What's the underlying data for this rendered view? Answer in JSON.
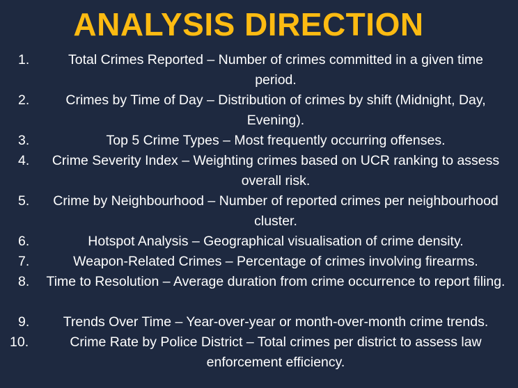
{
  "slide": {
    "title": "ANALYSIS DIRECTION",
    "items": [
      {
        "num": "1.",
        "text": "Total Crimes Reported – Number of crimes committed in a given time period."
      },
      {
        "num": "2.",
        "text": "Crimes by Time of Day – Distribution of crimes by shift (Midnight, Day, Evening)."
      },
      {
        "num": "3.",
        "text": "Top 5 Crime Types – Most frequently occurring offenses."
      },
      {
        "num": "4.",
        "text": "Crime Severity Index – Weighting crimes based on UCR ranking to assess overall risk."
      },
      {
        "num": "5.",
        "text": "Crime by Neighbourhood – Number of reported crimes per neighbourhood cluster."
      },
      {
        "num": "6.",
        "text": "Hotspot Analysis – Geographical visualisation of crime density."
      },
      {
        "num": "7.",
        "text": "Weapon-Related Crimes – Percentage of crimes involving firearms."
      },
      {
        "num": "8.",
        "text": "Time to Resolution – Average duration from crime occurrence to report filing."
      },
      {
        "num": "9.",
        "text": "Trends Over Time – Year-over-year or month-over-month crime trends."
      },
      {
        "num": "10.",
        "text": "Crime Rate by Police District – Total crimes per district to assess law enforcement efficiency."
      }
    ]
  }
}
